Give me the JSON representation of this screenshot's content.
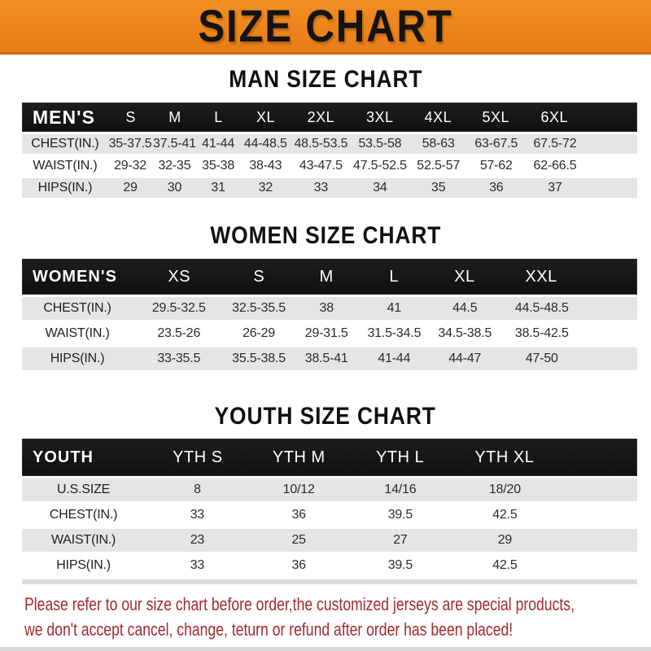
{
  "banner": {
    "title": "SIZE CHART",
    "bg_color": "#E87D18",
    "text_color": "#141414"
  },
  "sections": {
    "men": {
      "title": "MAN SIZE CHART",
      "table": {
        "header": [
          "MEN'S",
          "S",
          "M",
          "L",
          "XL",
          "2XL",
          "3XL",
          "4XL",
          "5XL",
          "6XL"
        ],
        "rows": [
          {
            "label": "CHEST(IN.)",
            "values": [
              "35-37.5",
              "37.5-41",
              "41-44",
              "44-48.5",
              "48.5-53.5",
              "53.5-58",
              "58-63",
              "63-67.5",
              "67.5-72"
            ]
          },
          {
            "label": "WAIST(IN.)",
            "values": [
              "29-32",
              "32-35",
              "35-38",
              "38-43",
              "43-47.5",
              "47.5-52.5",
              "52.5-57",
              "57-62",
              "62-66.5"
            ]
          },
          {
            "label": "HIPS(IN.)",
            "values": [
              "29",
              "30",
              "31",
              "32",
              "33",
              "34",
              "35",
              "36",
              "37"
            ]
          }
        ]
      }
    },
    "women": {
      "title": "WOMEN SIZE CHART",
      "table": {
        "header": [
          "WOMEN'S",
          "XS",
          "S",
          "M",
          "L",
          "XL",
          "XXL"
        ],
        "rows": [
          {
            "label": "CHEST(IN.)",
            "values": [
              "29.5-32.5",
              "32.5-35.5",
              "38",
              "41",
              "44.5",
              "44.5-48.5"
            ]
          },
          {
            "label": "WAIST(IN.)",
            "values": [
              "23.5-26",
              "26-29",
              "29-31.5",
              "31.5-34.5",
              "34.5-38.5",
              "38.5-42.5"
            ]
          },
          {
            "label": "HIPS(IN.)",
            "values": [
              "33-35.5",
              "35.5-38.5",
              "38.5-41",
              "41-44",
              "44-47",
              "47-50"
            ]
          }
        ]
      }
    },
    "youth": {
      "title": "YOUTH SIZE CHART",
      "table": {
        "header": [
          "YOUTH",
          "YTH S",
          "YTH M",
          "YTH L",
          "YTH XL"
        ],
        "rows": [
          {
            "label": "U.S.SIZE",
            "values": [
              "8",
              "10/12",
              "14/16",
              "18/20"
            ]
          },
          {
            "label": "CHEST(IN.)",
            "values": [
              "33",
              "36",
              "39.5",
              "42.5"
            ]
          },
          {
            "label": "WAIST(IN.)",
            "values": [
              "23",
              "25",
              "27",
              "29"
            ]
          },
          {
            "label": "HIPS(IN.)",
            "values": [
              "33",
              "36",
              "39.5",
              "42.5"
            ]
          }
        ]
      }
    }
  },
  "footer": {
    "line1": "Please refer to our size chart before order,the customized jerseys are special products,",
    "line2": "we don't accept cancel, change, teturn or refund after order has been placed!",
    "text_color": "#A32A2E"
  }
}
